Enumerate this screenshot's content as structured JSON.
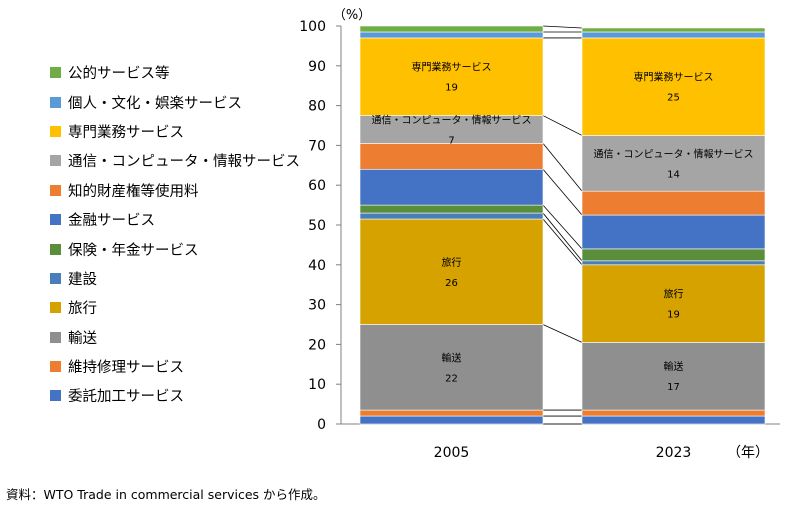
{
  "chart_data": {
    "type": "bar",
    "stacked": true,
    "categories": [
      "2005",
      "2023"
    ],
    "ylim": [
      0,
      100
    ],
    "yticks": [
      0,
      10,
      20,
      30,
      40,
      50,
      60,
      70,
      80,
      90,
      100
    ],
    "ylabel": "（%）",
    "xlabel": "（年）",
    "legend_position": "left",
    "series": [
      {
        "name": "委託加工サービス",
        "color": "#4472c4",
        "values": [
          2,
          2
        ]
      },
      {
        "name": "維持修理サービス",
        "color": "#ed7d31",
        "values": [
          1.5,
          1.5
        ]
      },
      {
        "name": "輸送",
        "color": "#8f8f8f",
        "values": [
          21.5,
          17
        ],
        "label": "輸送",
        "data_labels": [
          "22",
          "17"
        ]
      },
      {
        "name": "旅行",
        "color": "#d5a200",
        "values": [
          26.5,
          19.5
        ],
        "label": "旅行",
        "data_labels": [
          "26",
          "19"
        ]
      },
      {
        "name": "建設",
        "color": "#4a7ebb",
        "values": [
          1.5,
          1
        ]
      },
      {
        "name": "保険・年金サービス",
        "color": "#5b8e3a",
        "values": [
          2,
          3
        ]
      },
      {
        "name": "金融サービス",
        "color": "#4472c4",
        "values": [
          9,
          8.5
        ]
      },
      {
        "name": "知的財産権等使用料",
        "color": "#ed7d31",
        "values": [
          6.5,
          6
        ]
      },
      {
        "name": "通信・コンピュータ・情報サービス",
        "color": "#a5a5a5",
        "values": [
          7,
          14
        ],
        "label": "通信・コンピュータ・情報サービス",
        "data_labels": [
          "7",
          "14"
        ]
      },
      {
        "name": "専門業務サービス",
        "color": "#ffc000",
        "values": [
          19.5,
          24.5
        ],
        "label": "専門業務サービス",
        "data_labels": [
          "19",
          "25"
        ]
      },
      {
        "name": "個人・文化・娯楽サービス",
        "color": "#5b9bd5",
        "values": [
          1.5,
          1.5
        ]
      },
      {
        "name": "公的サービス等",
        "color": "#70ad47",
        "values": [
          1.5,
          1
        ]
      }
    ]
  },
  "source_note": "資料：WTO Trade in commercial services から作成。"
}
